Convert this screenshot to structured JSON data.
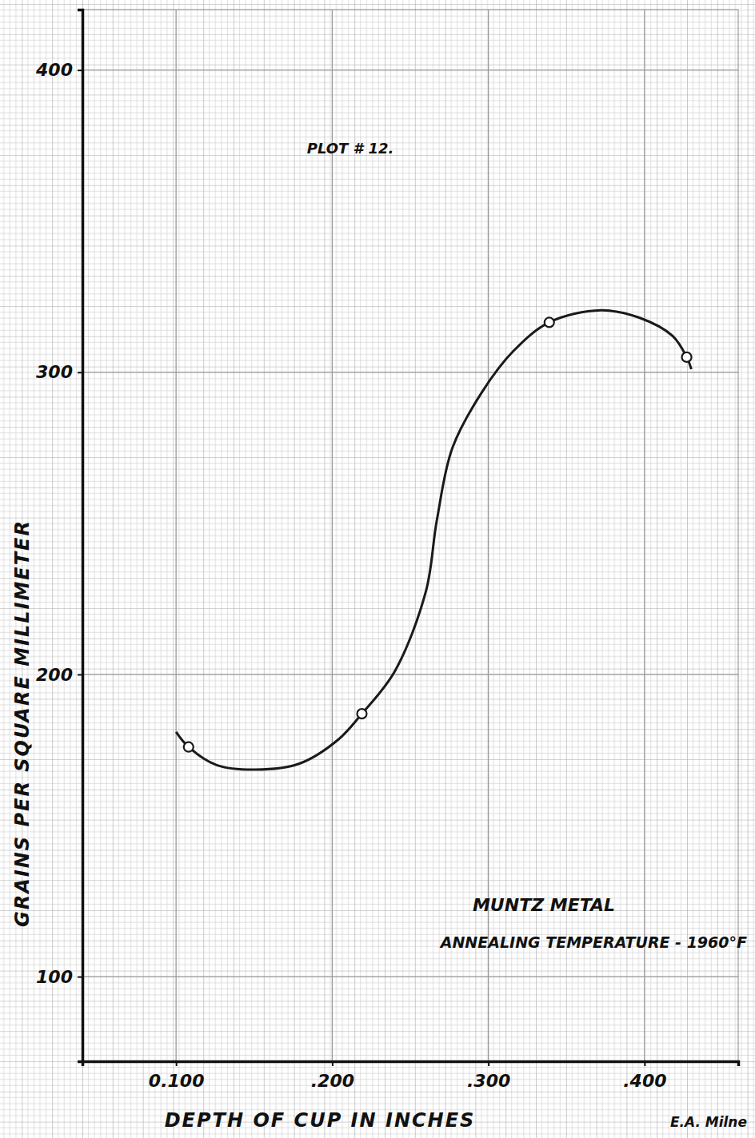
{
  "chart_data": {
    "type": "line",
    "title": "PLOT # 12.",
    "x_label": "DEPTH OF CUP IN INCHES",
    "y_label": "GRAINS PER SQUARE MILLIMETER",
    "annotations": [
      "MUNTZ METAL",
      "ANNEALING TEMPERATURE - 1960°F",
      "E.A. Milne"
    ],
    "xlim": [
      0.04,
      0.46
    ],
    "ylim": [
      72,
      420
    ],
    "xticks": [
      {
        "value": 0.1,
        "label": "0.100"
      },
      {
        "value": 0.2,
        "label": ".200"
      },
      {
        "value": 0.3,
        "label": ".300"
      },
      {
        "value": 0.4,
        "label": ".400"
      }
    ],
    "yticks": [
      100,
      200,
      300,
      400
    ],
    "grid": true,
    "series": [
      {
        "type": "line",
        "line_style": "solid",
        "color": "#1a1a1a",
        "x": [
          0.1,
          0.108,
          0.126,
          0.151,
          0.179,
          0.204,
          0.219,
          0.24,
          0.26,
          0.267,
          0.277,
          0.296,
          0.316,
          0.339,
          0.372,
          0.397,
          0.418,
          0.427,
          0.43
        ],
        "values": [
          181,
          176,
          170,
          168.5,
          170.5,
          178.5,
          187,
          201,
          227.5,
          251,
          275,
          293.5,
          307,
          316.5,
          320.5,
          318,
          312,
          305,
          301
        ]
      },
      {
        "type": "scatter",
        "marker": "circle",
        "color": "#1a1a1a",
        "x": [
          0.108,
          0.219,
          0.339,
          0.427
        ],
        "values": [
          176,
          187,
          316.5,
          305
        ]
      }
    ]
  }
}
